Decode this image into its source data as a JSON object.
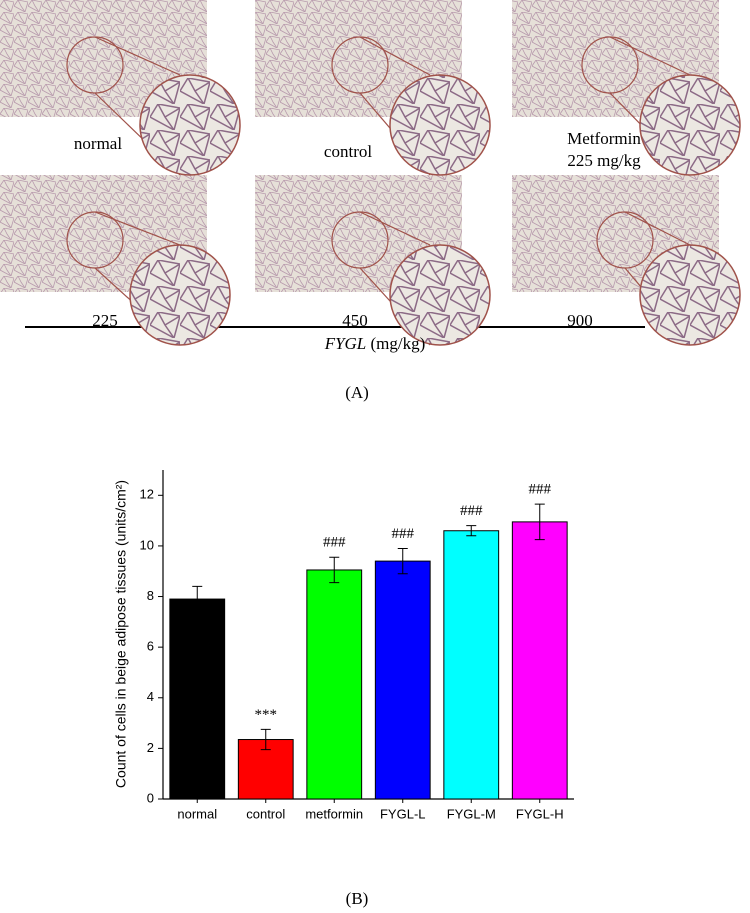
{
  "panel_a": {
    "labels": [
      "normal",
      "control",
      "Metformin",
      "225 mg/kg"
    ],
    "doses": [
      "225",
      "450",
      "900"
    ],
    "axis_name": "FYGL",
    "axis_unit": "(mg/kg)",
    "caption": "(A)"
  },
  "chart_data": {
    "type": "bar",
    "y_label": "Count of cells in beige adipose tissues (units/cm²)",
    "categories": [
      "normal",
      "control",
      "metformin",
      "FYGL-L",
      "FYGL-M",
      "FYGL-H"
    ],
    "values": [
      7.9,
      2.35,
      9.05,
      9.4,
      10.6,
      10.95
    ],
    "errors": [
      0.5,
      0.4,
      0.5,
      0.5,
      0.2,
      0.7
    ],
    "colors": [
      "#000000",
      "#ff0000",
      "#00ff00",
      "#0000ff",
      "#00ffff",
      "#ff00ff"
    ],
    "annotations": [
      null,
      "***",
      "###",
      "###",
      "###",
      "###"
    ],
    "ylim": [
      0,
      13
    ],
    "yticks": [
      0,
      2,
      4,
      6,
      8,
      10,
      12
    ],
    "caption": "(B)"
  }
}
